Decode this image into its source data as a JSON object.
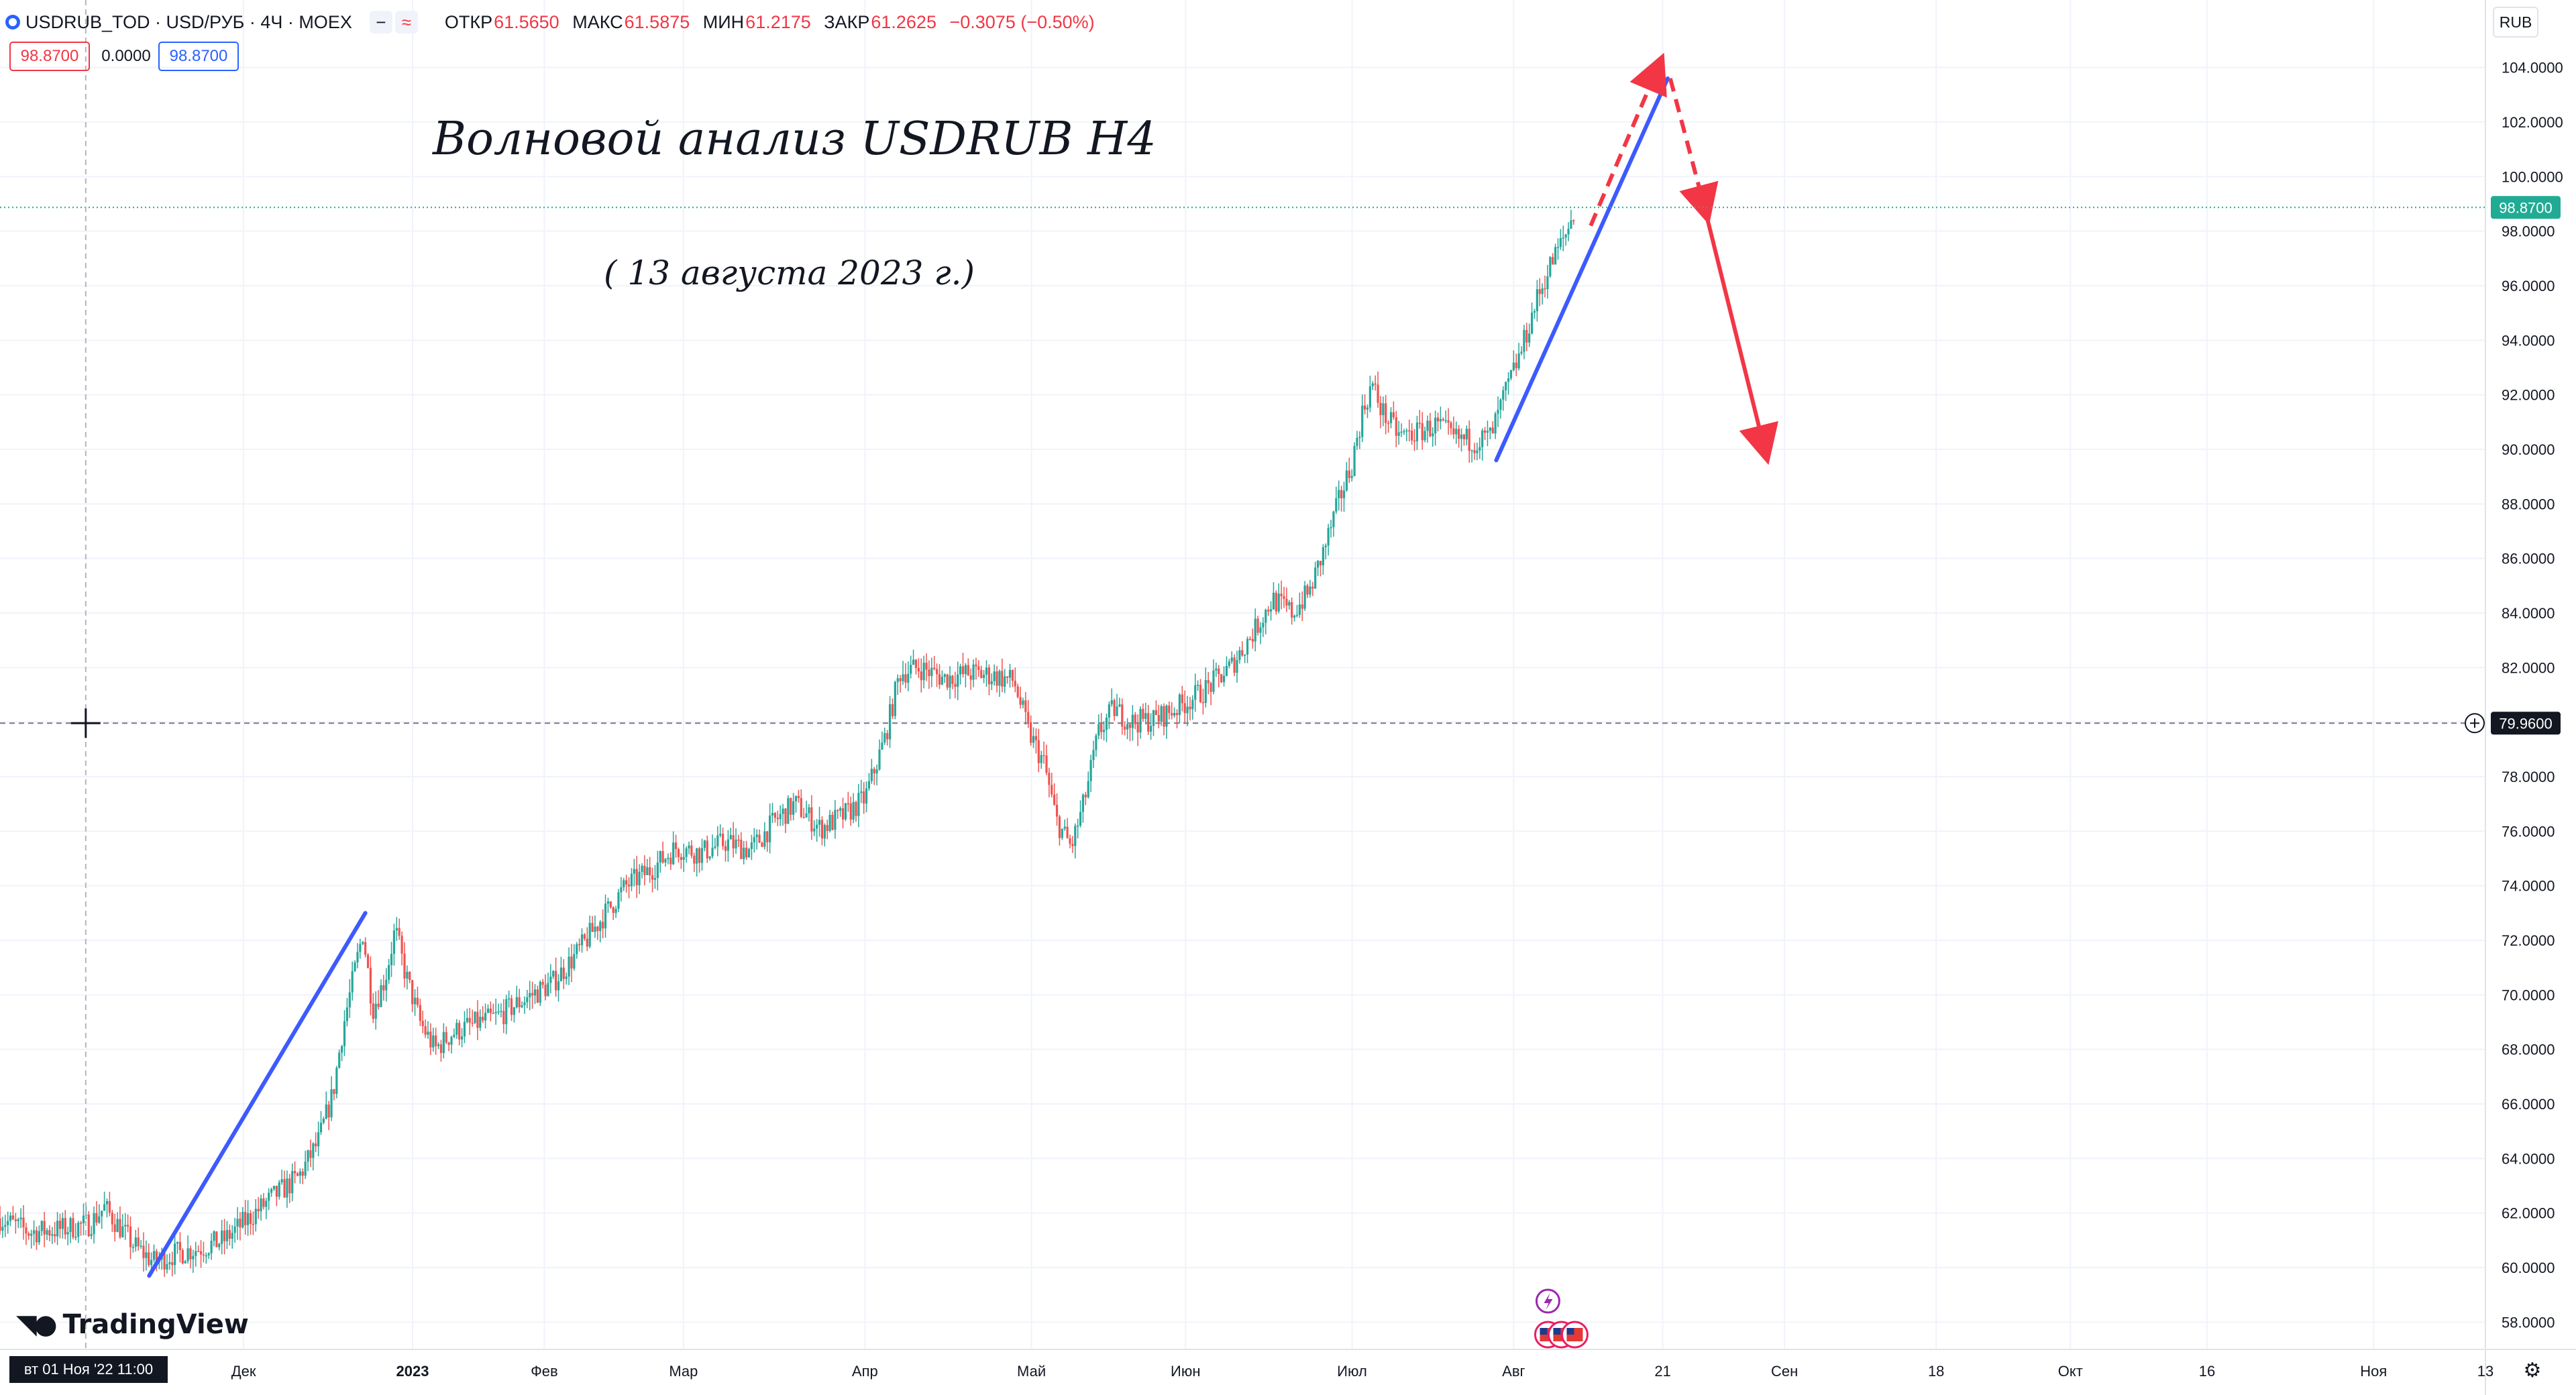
{
  "header": {
    "symbol_title": "USDRUB_TOD · USD/РУБ · 4Ч · MOEX",
    "btn_minus": "−",
    "btn_compare": "≈",
    "ohlc": [
      {
        "label": "ОТКР",
        "value": "61.5650"
      },
      {
        "label": "МАКС",
        "value": "61.5875"
      },
      {
        "label": "МИН",
        "value": "61.2175"
      },
      {
        "label": "ЗАКР",
        "value": "61.2625"
      },
      {
        "label": "",
        "value": "−0.3075 (−0.50%)"
      }
    ],
    "sell_price": "98.8700",
    "spread": "0.0000",
    "buy_price": "98.8700",
    "currency": "RUB"
  },
  "annotations": {
    "title": "Волновой анализ USDRUB H4",
    "date": "( 13 августа 2023 г.)"
  },
  "branding": {
    "logo_text": "TradingView"
  },
  "crosshair": {
    "date_label": "вт 01 Ноя '22   11:00",
    "price_label": "79.9600",
    "price": 79.96,
    "x_fraction": 0.0345
  },
  "last_price": {
    "label": "98.8700",
    "value": 98.87
  },
  "colors": {
    "up": "#26a69a",
    "down": "#ef5350",
    "wave_line": "#3d5afe",
    "forecast": "#f23645",
    "last_price_bg": "#22ab94",
    "grid": "#f0f3fa",
    "axis_text": "#131722"
  },
  "chart_data": {
    "type": "candlestick",
    "y_axis": {
      "min": 57,
      "max": 105,
      "ticks": [
        "58.0000",
        "60.0000",
        "62.0000",
        "64.0000",
        "66.0000",
        "68.0000",
        "70.0000",
        "72.0000",
        "74.0000",
        "76.0000",
        "78.0000",
        "80.0000",
        "82.0000",
        "84.0000",
        "86.0000",
        "88.0000",
        "90.0000",
        "92.0000",
        "94.0000",
        "96.0000",
        "98.0000",
        "100.0000",
        "102.0000",
        "104.0000"
      ]
    },
    "x_axis": {
      "ticks": [
        {
          "label": "Дек",
          "t": 0.098
        },
        {
          "label": "2023",
          "t": 0.166,
          "bold": true
        },
        {
          "label": "Фев",
          "t": 0.219
        },
        {
          "label": "Мар",
          "t": 0.275
        },
        {
          "label": "Апр",
          "t": 0.348
        },
        {
          "label": "Май",
          "t": 0.415
        },
        {
          "label": "Июн",
          "t": 0.477
        },
        {
          "label": "Июл",
          "t": 0.544
        },
        {
          "label": "Авг",
          "t": 0.609
        },
        {
          "label": "21",
          "t": 0.669
        },
        {
          "label": "Сен",
          "t": 0.718
        },
        {
          "label": "18",
          "t": 0.779
        },
        {
          "label": "Окт",
          "t": 0.833
        },
        {
          "label": "16",
          "t": 0.888
        },
        {
          "label": "Ноя",
          "t": 0.955
        },
        {
          "label": "13",
          "t": 1.0
        }
      ]
    },
    "price_path": [
      [
        0.0,
        61.8
      ],
      [
        0.012,
        61.3
      ],
      [
        0.024,
        61.4
      ],
      [
        0.036,
        61.6
      ],
      [
        0.042,
        62.2
      ],
      [
        0.048,
        61.5
      ],
      [
        0.054,
        60.8
      ],
      [
        0.062,
        60.2
      ],
      [
        0.07,
        60.5
      ],
      [
        0.08,
        60.7
      ],
      [
        0.09,
        61.0
      ],
      [
        0.1,
        61.8
      ],
      [
        0.11,
        62.6
      ],
      [
        0.12,
        63.3
      ],
      [
        0.128,
        64.6
      ],
      [
        0.134,
        66.4
      ],
      [
        0.138,
        68.8
      ],
      [
        0.143,
        71.0
      ],
      [
        0.146,
        72.3
      ],
      [
        0.15,
        69.5
      ],
      [
        0.155,
        70.6
      ],
      [
        0.159,
        72.4
      ],
      [
        0.163,
        70.8
      ],
      [
        0.169,
        69.0
      ],
      [
        0.175,
        68.0
      ],
      [
        0.182,
        68.6
      ],
      [
        0.19,
        68.9
      ],
      [
        0.2,
        69.2
      ],
      [
        0.212,
        69.9
      ],
      [
        0.222,
        70.4
      ],
      [
        0.232,
        71.5
      ],
      [
        0.242,
        72.8
      ],
      [
        0.252,
        74.0
      ],
      [
        0.262,
        74.6
      ],
      [
        0.272,
        75.4
      ],
      [
        0.282,
        75.2
      ],
      [
        0.292,
        75.6
      ],
      [
        0.302,
        75.3
      ],
      [
        0.312,
        76.4
      ],
      [
        0.32,
        77.0
      ],
      [
        0.33,
        76.1
      ],
      [
        0.34,
        76.6
      ],
      [
        0.348,
        77.2
      ],
      [
        0.356,
        79.4
      ],
      [
        0.362,
        81.8
      ],
      [
        0.37,
        82.0
      ],
      [
        0.38,
        81.6
      ],
      [
        0.39,
        81.8
      ],
      [
        0.4,
        81.7
      ],
      [
        0.408,
        81.5
      ],
      [
        0.414,
        79.6
      ],
      [
        0.42,
        78.5
      ],
      [
        0.425,
        76.4
      ],
      [
        0.431,
        75.4
      ],
      [
        0.436,
        77.0
      ],
      [
        0.442,
        79.6
      ],
      [
        0.448,
        80.5
      ],
      [
        0.455,
        80.0
      ],
      [
        0.465,
        80.1
      ],
      [
        0.475,
        80.6
      ],
      [
        0.485,
        81.2
      ],
      [
        0.495,
        82.0
      ],
      [
        0.505,
        83.4
      ],
      [
        0.512,
        84.5
      ],
      [
        0.52,
        84.0
      ],
      [
        0.527,
        84.8
      ],
      [
        0.533,
        86.4
      ],
      [
        0.539,
        88.2
      ],
      [
        0.544,
        89.5
      ],
      [
        0.548,
        91.3
      ],
      [
        0.552,
        92.4
      ],
      [
        0.556,
        91.4
      ],
      [
        0.563,
        90.5
      ],
      [
        0.57,
        90.6
      ],
      [
        0.578,
        90.9
      ],
      [
        0.585,
        90.4
      ],
      [
        0.594,
        90.3
      ],
      [
        0.6,
        90.5
      ],
      [
        0.605,
        91.9
      ],
      [
        0.612,
        93.6
      ],
      [
        0.618,
        95.4
      ],
      [
        0.624,
        96.8
      ],
      [
        0.63,
        97.9
      ],
      [
        0.634,
        98.9
      ]
    ],
    "wave_lines": [
      {
        "from": [
          0.06,
          59.7
        ],
        "to": [
          0.147,
          73.0
        ]
      },
      {
        "from": [
          0.602,
          89.6
        ],
        "to": [
          0.671,
          103.6
        ]
      }
    ],
    "forecast_dashed": [
      {
        "from": [
          0.64,
          98.2
        ],
        "to": [
          0.667,
          104.0
        ]
      },
      {
        "from": [
          0.672,
          103.6
        ],
        "to": [
          0.686,
          98.8
        ]
      }
    ],
    "forecast_solid": {
      "from": [
        0.686,
        98.8
      ],
      "to": [
        0.71,
        90.0
      ]
    }
  }
}
